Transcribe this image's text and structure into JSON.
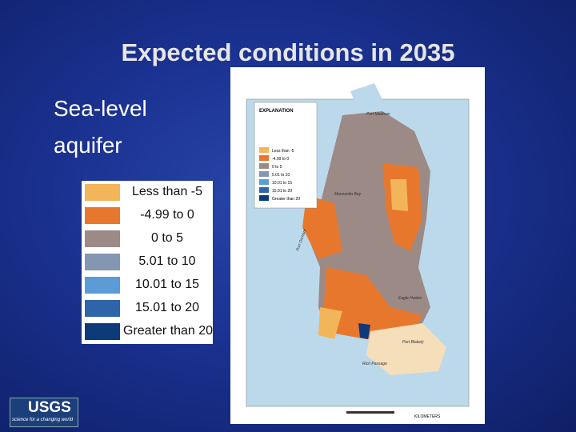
{
  "slide": {
    "title": "Expected conditions in 2035",
    "subtitle_lines": [
      "Sea-level",
      "aquifer"
    ],
    "legend": {
      "items": [
        {
          "label": "Less than -5",
          "color": "#f2b55a"
        },
        {
          "label": "-4.99 to 0",
          "color": "#e8772e"
        },
        {
          "label": "0 to 5",
          "color": "#9c8a86"
        },
        {
          "label": "5.01 to 10",
          "color": "#8496b2"
        },
        {
          "label": "10.01 to 15",
          "color": "#5b9bd6"
        },
        {
          "label": "15.01 to 20",
          "color": "#2e64a8"
        },
        {
          "label": "Greater than 20",
          "color": "#0d3a78"
        }
      ]
    },
    "map": {
      "explanation_title": "EXPLANATION",
      "places": [
        "Port Madison",
        "Manzanita Bay",
        "Eagle Harbor",
        "Port Blakely",
        "Rich Passage",
        "Port Orchard"
      ],
      "scale_label": "KILOMETERS"
    },
    "logo": {
      "name": "USGS",
      "tagline": "science for a changing world"
    }
  }
}
